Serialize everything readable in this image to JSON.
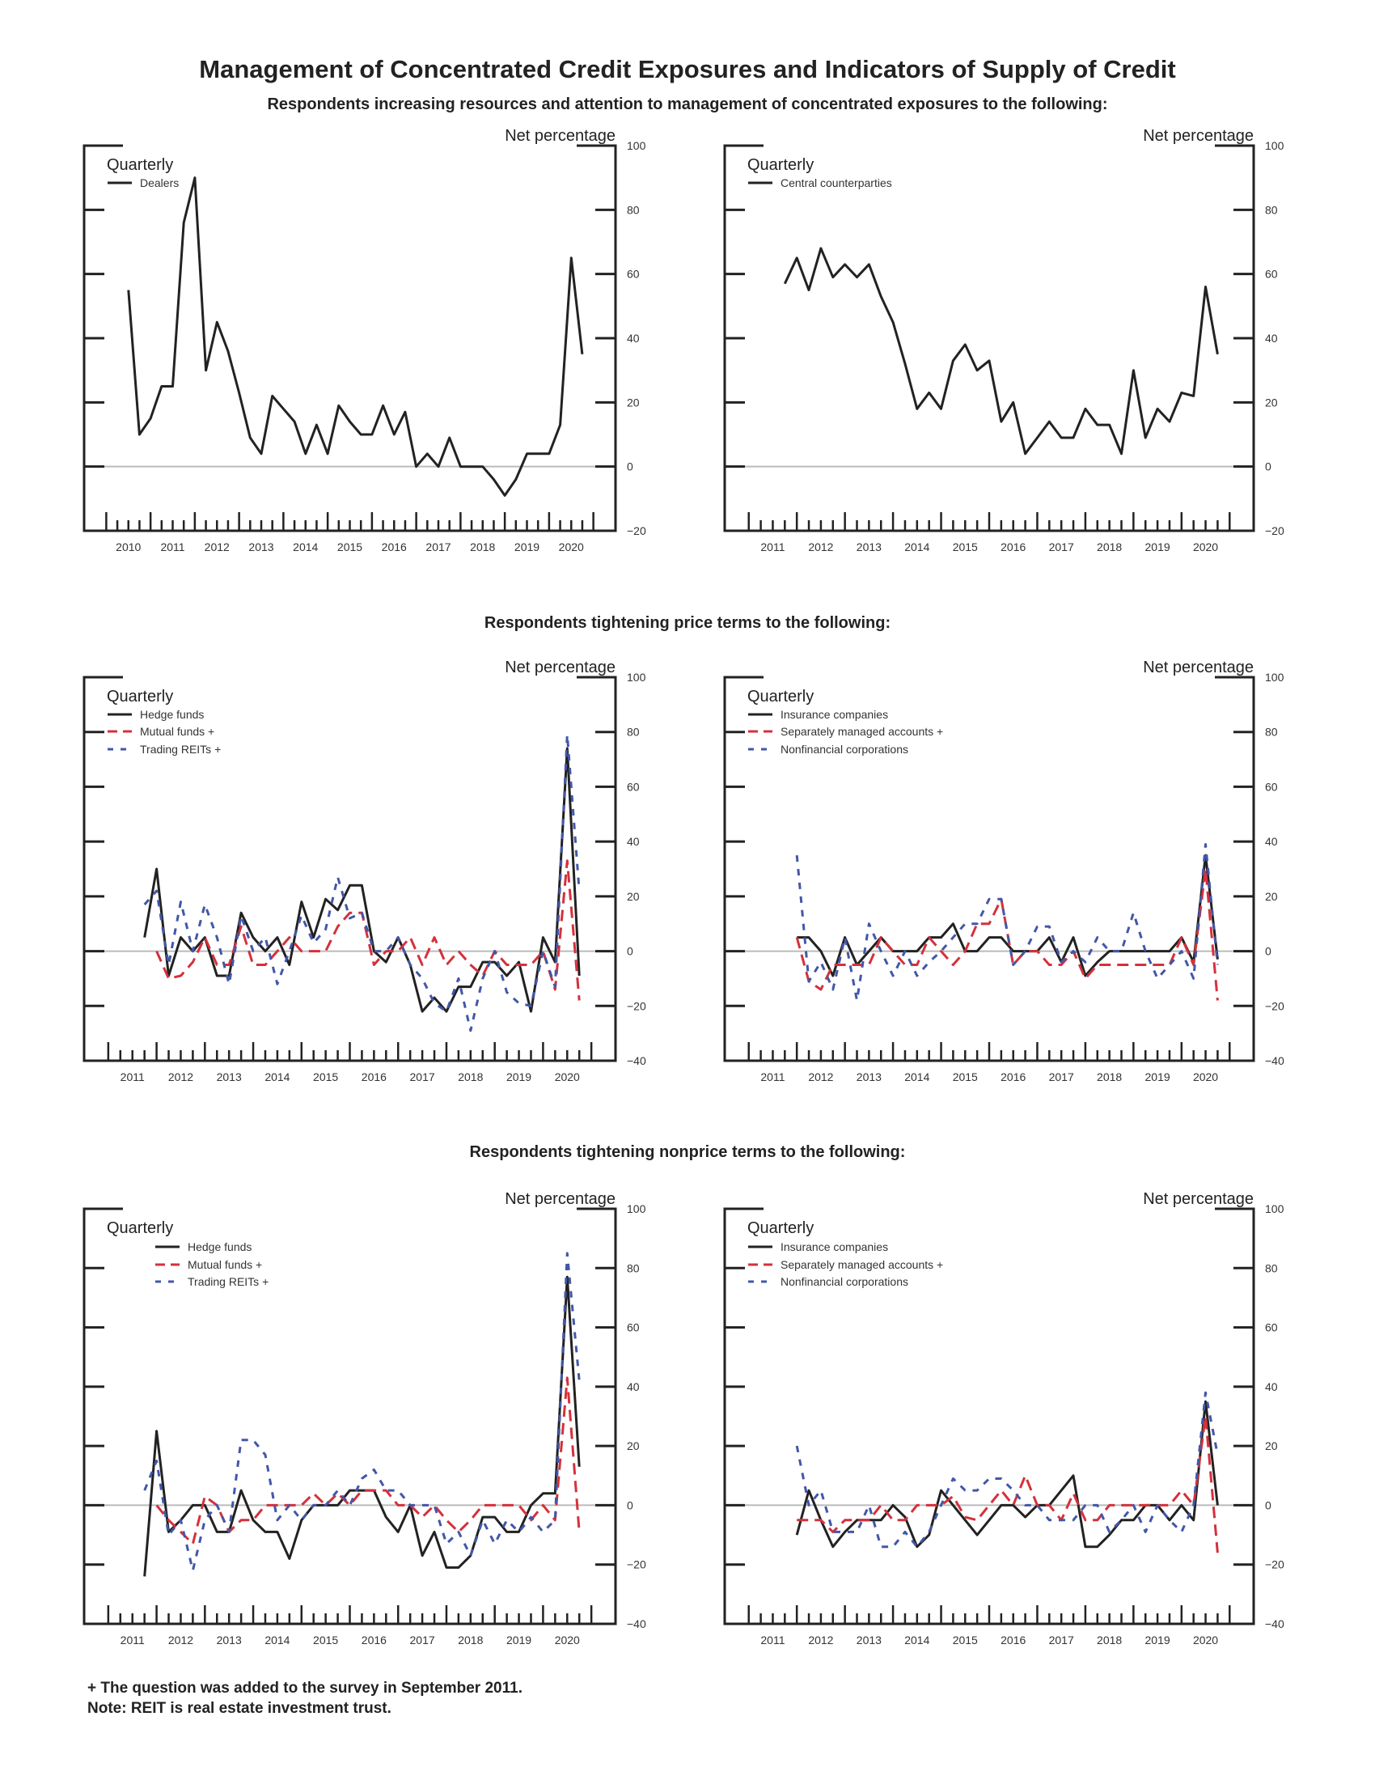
{
  "page": {
    "title": "Management of Concentrated Credit Exposures and Indicators of Supply of Credit",
    "sections": [
      "Respondents increasing resources and attention to management of concentrated exposures to the following:",
      "Respondents tightening price terms to the following:",
      "Respondents tightening nonprice terms to the following:"
    ],
    "footnotes": [
      "+ The question was added to the survey in September 2011.",
      "Note:  REIT is real estate investment trust."
    ]
  },
  "colors": {
    "black": "#222222",
    "red": "#d4313c",
    "blue": "#4257a8",
    "zero_line": "#bbbbbb"
  },
  "chart_data": [
    {
      "type": "line",
      "frequency_label": "Quarterly",
      "ylabel": "Net percentage",
      "ylim": [
        -20,
        100
      ],
      "y_ticks": [
        -20,
        0,
        20,
        40,
        60,
        80,
        100
      ],
      "x_tick_labels": [
        "2010",
        "2011",
        "2012",
        "2013",
        "2014",
        "2015",
        "2016",
        "2017",
        "2018",
        "2019",
        "2020"
      ],
      "grid": false,
      "legend": "top-left",
      "x": [
        "2010:Q2",
        "2010:Q3",
        "2010:Q4",
        "2011:Q1",
        "2011:Q2",
        "2011:Q3",
        "2011:Q4",
        "2012:Q1",
        "2012:Q2",
        "2012:Q3",
        "2012:Q4",
        "2013:Q1",
        "2013:Q2",
        "2013:Q3",
        "2013:Q4",
        "2014:Q1",
        "2014:Q2",
        "2014:Q3",
        "2014:Q4",
        "2015:Q1",
        "2015:Q2",
        "2015:Q3",
        "2015:Q4",
        "2016:Q1",
        "2016:Q2",
        "2016:Q3",
        "2016:Q4",
        "2017:Q1",
        "2017:Q2",
        "2017:Q3",
        "2017:Q4",
        "2018:Q1",
        "2018:Q2",
        "2018:Q3",
        "2018:Q4",
        "2019:Q1",
        "2019:Q2",
        "2019:Q3",
        "2019:Q4",
        "2020:Q1",
        "2020:Q2",
        "2020:Q3"
      ],
      "series": [
        {
          "name": "Dealers",
          "color": "#222222",
          "style": "solid",
          "values": [
            55,
            10,
            15,
            25,
            25,
            76,
            90,
            30,
            45,
            36,
            23,
            9,
            4,
            22,
            18,
            14,
            4,
            13,
            4,
            19,
            14,
            10,
            10,
            19,
            10,
            17,
            0,
            4,
            0,
            9,
            0,
            0,
            0,
            -4,
            -9,
            -4,
            4,
            4,
            4,
            13,
            65,
            35
          ]
        }
      ]
    },
    {
      "type": "line",
      "frequency_label": "Quarterly",
      "ylabel": "Net percentage",
      "ylim": [
        -20,
        100
      ],
      "y_ticks": [
        -20,
        0,
        20,
        40,
        60,
        80,
        100
      ],
      "x_tick_labels": [
        "2011",
        "2012",
        "2013",
        "2014",
        "2015",
        "2016",
        "2017",
        "2018",
        "2019",
        "2020"
      ],
      "grid": false,
      "legend": "top-left",
      "x": [
        "2011:Q3",
        "2011:Q4",
        "2012:Q1",
        "2012:Q2",
        "2012:Q3",
        "2012:Q4",
        "2013:Q1",
        "2013:Q2",
        "2013:Q3",
        "2013:Q4",
        "2014:Q1",
        "2014:Q2",
        "2014:Q3",
        "2014:Q4",
        "2015:Q1",
        "2015:Q2",
        "2015:Q3",
        "2015:Q4",
        "2016:Q1",
        "2016:Q2",
        "2016:Q3",
        "2016:Q4",
        "2017:Q1",
        "2017:Q2",
        "2017:Q3",
        "2017:Q4",
        "2018:Q1",
        "2018:Q2",
        "2018:Q3",
        "2018:Q4",
        "2019:Q1",
        "2019:Q2",
        "2019:Q3",
        "2019:Q4",
        "2020:Q1",
        "2020:Q2",
        "2020:Q3"
      ],
      "series": [
        {
          "name": "Central counterparties",
          "color": "#222222",
          "style": "solid",
          "values": [
            57,
            65,
            55,
            68,
            59,
            63,
            59,
            63,
            53,
            45,
            32,
            18,
            23,
            18,
            33,
            38,
            30,
            33,
            14,
            20,
            4,
            9,
            14,
            9,
            9,
            18,
            13,
            13,
            4,
            30,
            9,
            18,
            14,
            23,
            22,
            56,
            35
          ]
        }
      ]
    },
    {
      "type": "line",
      "frequency_label": "Quarterly",
      "ylabel": "Net percentage",
      "ylim": [
        -40,
        100
      ],
      "y_ticks": [
        -40,
        -20,
        0,
        20,
        40,
        60,
        80,
        100
      ],
      "x_tick_labels": [
        "2011",
        "2012",
        "2013",
        "2014",
        "2015",
        "2016",
        "2017",
        "2018",
        "2019",
        "2020"
      ],
      "grid": false,
      "legend": "top-left",
      "x": [
        "2011:Q3",
        "2011:Q4",
        "2012:Q1",
        "2012:Q2",
        "2012:Q3",
        "2012:Q4",
        "2013:Q1",
        "2013:Q2",
        "2013:Q3",
        "2013:Q4",
        "2014:Q1",
        "2014:Q2",
        "2014:Q3",
        "2014:Q4",
        "2015:Q1",
        "2015:Q2",
        "2015:Q3",
        "2015:Q4",
        "2016:Q1",
        "2016:Q2",
        "2016:Q3",
        "2016:Q4",
        "2017:Q1",
        "2017:Q2",
        "2017:Q3",
        "2017:Q4",
        "2018:Q1",
        "2018:Q2",
        "2018:Q3",
        "2018:Q4",
        "2019:Q1",
        "2019:Q2",
        "2019:Q3",
        "2019:Q4",
        "2020:Q1",
        "2020:Q2",
        "2020:Q3"
      ],
      "series": [
        {
          "name": "Hedge funds",
          "color": "#222222",
          "style": "solid",
          "values": [
            5,
            30,
            -9,
            5,
            0,
            5,
            -9,
            -9,
            14,
            5,
            0,
            5,
            -5,
            18,
            5,
            19,
            15,
            24,
            24,
            0,
            -4,
            5,
            -5,
            -22,
            -17,
            -22,
            -13,
            -13,
            -4,
            -4,
            -9,
            -4,
            -22,
            5,
            -4,
            74,
            -9
          ]
        },
        {
          "name": "Mutual funds +",
          "color": "#d4313c",
          "style": "dashed",
          "values": [
            null,
            0,
            -10,
            -9,
            -4,
            5,
            -5,
            -5,
            9,
            -5,
            -5,
            0,
            5,
            0,
            0,
            0,
            9,
            14,
            14,
            -5,
            0,
            0,
            5,
            -5,
            5,
            -5,
            0,
            -5,
            -9,
            0,
            -5,
            -5,
            -5,
            0,
            -14,
            33,
            -18
          ]
        },
        {
          "name": "Trading REITs +",
          "color": "#4257a8",
          "style": "short-dashed",
          "values": [
            17,
            22,
            -5,
            18,
            0,
            17,
            5,
            -12,
            13,
            0,
            5,
            -12,
            0,
            13,
            3,
            8,
            27,
            12,
            14,
            0,
            0,
            5,
            -5,
            -10,
            -19,
            -22,
            -10,
            -29,
            -10,
            0,
            -15,
            -19,
            -20,
            0,
            -13,
            79,
            22
          ]
        }
      ]
    },
    {
      "type": "line",
      "frequency_label": "Quarterly",
      "ylabel": "Net percentage",
      "ylim": [
        -40,
        100
      ],
      "y_ticks": [
        -40,
        -20,
        0,
        20,
        40,
        60,
        80,
        100
      ],
      "x_tick_labels": [
        "2011",
        "2012",
        "2013",
        "2014",
        "2015",
        "2016",
        "2017",
        "2018",
        "2019",
        "2020"
      ],
      "grid": false,
      "legend": "top-left",
      "x": [
        "2011:Q4",
        "2012:Q1",
        "2012:Q2",
        "2012:Q3",
        "2012:Q4",
        "2013:Q1",
        "2013:Q2",
        "2013:Q3",
        "2013:Q4",
        "2014:Q1",
        "2014:Q2",
        "2014:Q3",
        "2014:Q4",
        "2015:Q1",
        "2015:Q2",
        "2015:Q3",
        "2015:Q4",
        "2016:Q1",
        "2016:Q2",
        "2016:Q3",
        "2016:Q4",
        "2017:Q1",
        "2017:Q2",
        "2017:Q3",
        "2017:Q4",
        "2018:Q1",
        "2018:Q2",
        "2018:Q3",
        "2018:Q4",
        "2019:Q1",
        "2019:Q2",
        "2019:Q3",
        "2019:Q4",
        "2020:Q1",
        "2020:Q2",
        "2020:Q3"
      ],
      "series": [
        {
          "name": "Insurance companies",
          "color": "#222222",
          "style": "solid",
          "values": [
            5,
            5,
            0,
            -9,
            5,
            -5,
            0,
            5,
            0,
            0,
            0,
            5,
            5,
            10,
            0,
            0,
            5,
            5,
            0,
            0,
            0,
            5,
            -4,
            5,
            -9,
            -4,
            0,
            0,
            0,
            0,
            0,
            0,
            5,
            -4,
            35,
            -3
          ]
        },
        {
          "name": "Separately managed accounts +",
          "color": "#d4313c",
          "style": "dashed",
          "values": [
            5,
            -11,
            -14,
            -5,
            -5,
            -5,
            -5,
            5,
            0,
            -5,
            -5,
            5,
            0,
            -5,
            0,
            10,
            10,
            19,
            -5,
            0,
            0,
            -5,
            -5,
            0,
            -10,
            -5,
            -5,
            -5,
            -5,
            -5,
            -5,
            -5,
            5,
            -5,
            30,
            -18
          ]
        },
        {
          "name": "Nonfinancial corporations",
          "color": "#4257a8",
          "style": "short-dashed",
          "values": [
            35,
            -11,
            -4,
            -14,
            5,
            -18,
            10,
            0,
            -9,
            0,
            -9,
            -4,
            0,
            5,
            10,
            10,
            19,
            19,
            -5,
            0,
            9,
            9,
            -4,
            0,
            -4,
            5,
            0,
            0,
            14,
            0,
            -10,
            -5,
            0,
            -10,
            39,
            -5
          ]
        }
      ]
    },
    {
      "type": "line",
      "frequency_label": "Quarterly",
      "ylabel": "Net percentage",
      "ylim": [
        -40,
        100
      ],
      "y_ticks": [
        -40,
        -20,
        0,
        20,
        40,
        60,
        80,
        100
      ],
      "x_tick_labels": [
        "2011",
        "2012",
        "2013",
        "2014",
        "2015",
        "2016",
        "2017",
        "2018",
        "2019",
        "2020"
      ],
      "grid": false,
      "legend": "top-left",
      "x": [
        "2011:Q3",
        "2011:Q4",
        "2012:Q1",
        "2012:Q2",
        "2012:Q3",
        "2012:Q4",
        "2013:Q1",
        "2013:Q2",
        "2013:Q3",
        "2013:Q4",
        "2014:Q1",
        "2014:Q2",
        "2014:Q3",
        "2014:Q4",
        "2015:Q1",
        "2015:Q2",
        "2015:Q3",
        "2015:Q4",
        "2016:Q1",
        "2016:Q2",
        "2016:Q3",
        "2016:Q4",
        "2017:Q1",
        "2017:Q2",
        "2017:Q3",
        "2017:Q4",
        "2018:Q1",
        "2018:Q2",
        "2018:Q3",
        "2018:Q4",
        "2019:Q1",
        "2019:Q2",
        "2019:Q3",
        "2019:Q4",
        "2020:Q1",
        "2020:Q2",
        "2020:Q3"
      ],
      "series": [
        {
          "name": "Hedge funds",
          "color": "#222222",
          "style": "solid",
          "values": [
            -24,
            25,
            -9,
            -5,
            0,
            0,
            -9,
            -9,
            5,
            -5,
            -9,
            -9,
            -18,
            -5,
            0,
            0,
            0,
            5,
            5,
            5,
            -4,
            -9,
            0,
            -17,
            -9,
            -21,
            -21,
            -17,
            -4,
            -4,
            -9,
            -9,
            0,
            4,
            4,
            77,
            13
          ]
        },
        {
          "name": "Mutual funds +",
          "color": "#d4313c",
          "style": "dashed",
          "values": [
            null,
            0,
            -5,
            -9,
            -13,
            3,
            0,
            -9,
            -5,
            -5,
            0,
            0,
            0,
            0,
            4,
            0,
            4,
            0,
            5,
            5,
            5,
            0,
            0,
            -4,
            0,
            -5,
            -9,
            -5,
            0,
            0,
            0,
            0,
            -5,
            0,
            -5,
            43,
            -9
          ]
        },
        {
          "name": "Trading REITs +",
          "color": "#4257a8",
          "style": "short-dashed",
          "values": [
            5,
            15,
            -10,
            -5,
            -22,
            -5,
            0,
            -9,
            22,
            22,
            17,
            -5,
            0,
            -5,
            0,
            0,
            5,
            0,
            9,
            12,
            5,
            5,
            0,
            0,
            0,
            -13,
            -9,
            -17,
            -5,
            -13,
            -5,
            -9,
            -4,
            -9,
            -5,
            85,
            42
          ]
        }
      ]
    },
    {
      "type": "line",
      "frequency_label": "Quarterly",
      "ylabel": "Net percentage",
      "ylim": [
        -40,
        100
      ],
      "y_ticks": [
        -40,
        -20,
        0,
        20,
        40,
        60,
        80,
        100
      ],
      "x_tick_labels": [
        "2011",
        "2012",
        "2013",
        "2014",
        "2015",
        "2016",
        "2017",
        "2018",
        "2019",
        "2020"
      ],
      "grid": false,
      "legend": "top-left",
      "x": [
        "2011:Q4",
        "2012:Q1",
        "2012:Q2",
        "2012:Q3",
        "2012:Q4",
        "2013:Q1",
        "2013:Q2",
        "2013:Q3",
        "2013:Q4",
        "2014:Q1",
        "2014:Q2",
        "2014:Q3",
        "2014:Q4",
        "2015:Q1",
        "2015:Q2",
        "2015:Q3",
        "2015:Q4",
        "2016:Q1",
        "2016:Q2",
        "2016:Q3",
        "2016:Q4",
        "2017:Q1",
        "2017:Q2",
        "2017:Q3",
        "2017:Q4",
        "2018:Q1",
        "2018:Q2",
        "2018:Q3",
        "2018:Q4",
        "2019:Q1",
        "2019:Q2",
        "2019:Q3",
        "2019:Q4",
        "2020:Q1",
        "2020:Q2",
        "2020:Q3"
      ],
      "series": [
        {
          "name": "Insurance companies",
          "color": "#222222",
          "style": "solid",
          "values": [
            -10,
            5,
            -5,
            -14,
            -9,
            -5,
            -5,
            -5,
            0,
            -4,
            -14,
            -10,
            5,
            0,
            -5,
            -10,
            -5,
            0,
            0,
            -4,
            0,
            0,
            5,
            10,
            -14,
            -14,
            -10,
            -5,
            -5,
            0,
            0,
            -5,
            0,
            -5,
            35,
            0
          ]
        },
        {
          "name": "Separately managed accounts +",
          "color": "#d4313c",
          "style": "dashed",
          "values": [
            -5,
            -5,
            -5,
            -9,
            -5,
            -5,
            -5,
            0,
            -5,
            -5,
            0,
            0,
            0,
            3,
            -4,
            -5,
            0,
            5,
            0,
            10,
            0,
            0,
            -5,
            4,
            -5,
            -5,
            0,
            0,
            0,
            0,
            0,
            0,
            5,
            0,
            30,
            -16
          ]
        },
        {
          "name": "Nonfinancial corporations",
          "color": "#4257a8",
          "style": "short-dashed",
          "values": [
            20,
            0,
            5,
            -9,
            -9,
            -9,
            0,
            -14,
            -14,
            -9,
            -14,
            -9,
            0,
            9,
            5,
            5,
            9,
            9,
            5,
            0,
            0,
            -5,
            -5,
            -5,
            0,
            0,
            -9,
            -5,
            0,
            -9,
            0,
            -5,
            -9,
            0,
            38,
            17
          ]
        }
      ]
    }
  ]
}
